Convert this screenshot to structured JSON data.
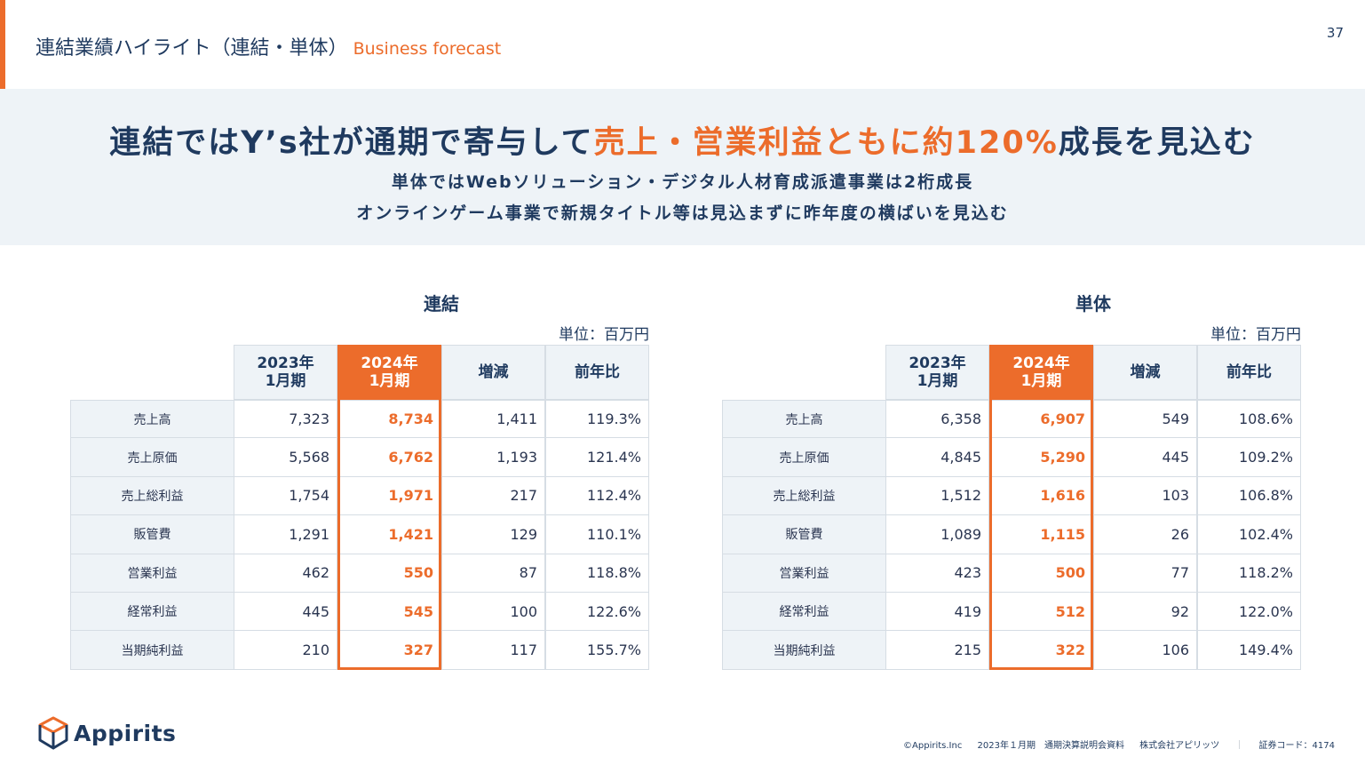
{
  "header": {
    "title": "連結業績ハイライト（連結・単体）",
    "title_en": "Business forecast",
    "page_number": "37"
  },
  "banner": {
    "headline_pre": "連結ではY’s社が通期で寄与して",
    "headline_highlight": "売上・営業利益ともに約120%",
    "headline_post": "成長を見込む",
    "sub1": "単体ではWebソリューション・デジタル人材育成派遣事業は2桁成長",
    "sub2": "オンラインゲーム事業で新規タイトル等は見込まずに昨年度の横ばいを見込む"
  },
  "consolidated": {
    "title": "連結",
    "unit": "単位：百万円",
    "headers": {
      "prev_year": "2023年",
      "prev_month": "1月期",
      "cur_year": "2024年",
      "cur_month": "1月期",
      "change": "増減",
      "yoy": "前年比"
    },
    "rows": [
      {
        "label": "売上高",
        "prev": "7,323",
        "cur": "8,734",
        "change": "1,411",
        "yoy": "119.3%"
      },
      {
        "label": "売上原価",
        "prev": "5,568",
        "cur": "6,762",
        "change": "1,193",
        "yoy": "121.4%"
      },
      {
        "label": "売上総利益",
        "prev": "1,754",
        "cur": "1,971",
        "change": "217",
        "yoy": "112.4%"
      },
      {
        "label": "販管費",
        "prev": "1,291",
        "cur": "1,421",
        "change": "129",
        "yoy": "110.1%"
      },
      {
        "label": "営業利益",
        "prev": "462",
        "cur": "550",
        "change": "87",
        "yoy": "118.8%"
      },
      {
        "label": "経常利益",
        "prev": "445",
        "cur": "545",
        "change": "100",
        "yoy": "122.6%"
      },
      {
        "label": "当期純利益",
        "prev": "210",
        "cur": "327",
        "change": "117",
        "yoy": "155.7%"
      }
    ]
  },
  "standalone": {
    "title": "単体",
    "unit": "単位：百万円",
    "headers": {
      "prev_year": "2023年",
      "prev_month": "1月期",
      "cur_year": "2024年",
      "cur_month": "1月期",
      "change": "増減",
      "yoy": "前年比"
    },
    "rows": [
      {
        "label": "売上高",
        "prev": "6,358",
        "cur": "6,907",
        "change": "549",
        "yoy": "108.6%"
      },
      {
        "label": "売上原価",
        "prev": "4,845",
        "cur": "5,290",
        "change": "445",
        "yoy": "109.2%"
      },
      {
        "label": "売上総利益",
        "prev": "1,512",
        "cur": "1,616",
        "change": "103",
        "yoy": "106.8%"
      },
      {
        "label": "販管費",
        "prev": "1,089",
        "cur": "1,115",
        "change": "26",
        "yoy": "102.4%"
      },
      {
        "label": "営業利益",
        "prev": "423",
        "cur": "500",
        "change": "77",
        "yoy": "118.2%"
      },
      {
        "label": "経常利益",
        "prev": "419",
        "cur": "512",
        "change": "92",
        "yoy": "122.0%"
      },
      {
        "label": "当期純利益",
        "prev": "215",
        "cur": "322",
        "change": "106",
        "yoy": "149.4%"
      }
    ]
  },
  "logo": {
    "text": "Appirits",
    "icon": "cube-logo-icon"
  },
  "footer": {
    "copyright": "©Appirits.Inc",
    "doc": "2023年１月期　通期決算説明会資料",
    "company": "株式会社アピリッツ",
    "separator": "｜",
    "code": "証券コード：4174"
  },
  "colors": {
    "accent": "#ec6c2b",
    "navy": "#1f3a5f",
    "banner_bg": "#eef3f7"
  }
}
